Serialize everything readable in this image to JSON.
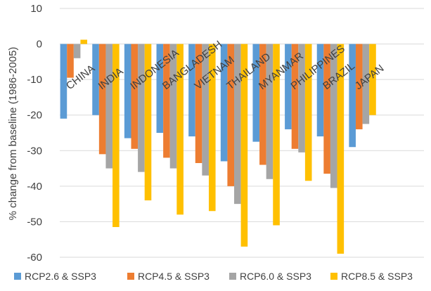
{
  "chart_data": {
    "type": "bar",
    "title": "",
    "xlabel": "",
    "ylabel": "% change from baseline (1986-2005)",
    "ylim": [
      -60,
      10
    ],
    "yticks": [
      10,
      0,
      -10,
      -20,
      -30,
      -40,
      -50,
      -60
    ],
    "grid": true,
    "legend_position": "bottom",
    "categories": [
      "CHINA",
      "INDIA",
      "INDONESIA",
      "BANGLADESH",
      "VIETNAM",
      "THAILAND",
      "MYANMAR",
      "PHILIPPINES",
      "BRAZIL",
      "JAPAN"
    ],
    "series": [
      {
        "name": "RCP2.6 & SSP3",
        "color": "#5b9bd5",
        "values": [
          -21,
          -20,
          -26.5,
          -25,
          -26,
          -33,
          -27.5,
          -24,
          -26,
          -29
        ]
      },
      {
        "name": "RCP4.5 & SSP3",
        "color": "#ed7d31",
        "values": [
          -9.5,
          -31,
          -29.5,
          -32,
          -33.5,
          -40,
          -34,
          -29.5,
          -36.5,
          -24
        ]
      },
      {
        "name": "RCP6.0 & SSP3",
        "color": "#a5a5a5",
        "values": [
          -4,
          -35,
          -36,
          -35,
          -37,
          -45,
          -38,
          -30.5,
          -40.5,
          -22.5
        ]
      },
      {
        "name": "RCP8.5 & SSP3",
        "color": "#ffc000",
        "values": [
          1.2,
          -51.5,
          -44,
          -48,
          -47,
          -57,
          -51,
          -38.5,
          -59,
          -20
        ]
      }
    ]
  }
}
